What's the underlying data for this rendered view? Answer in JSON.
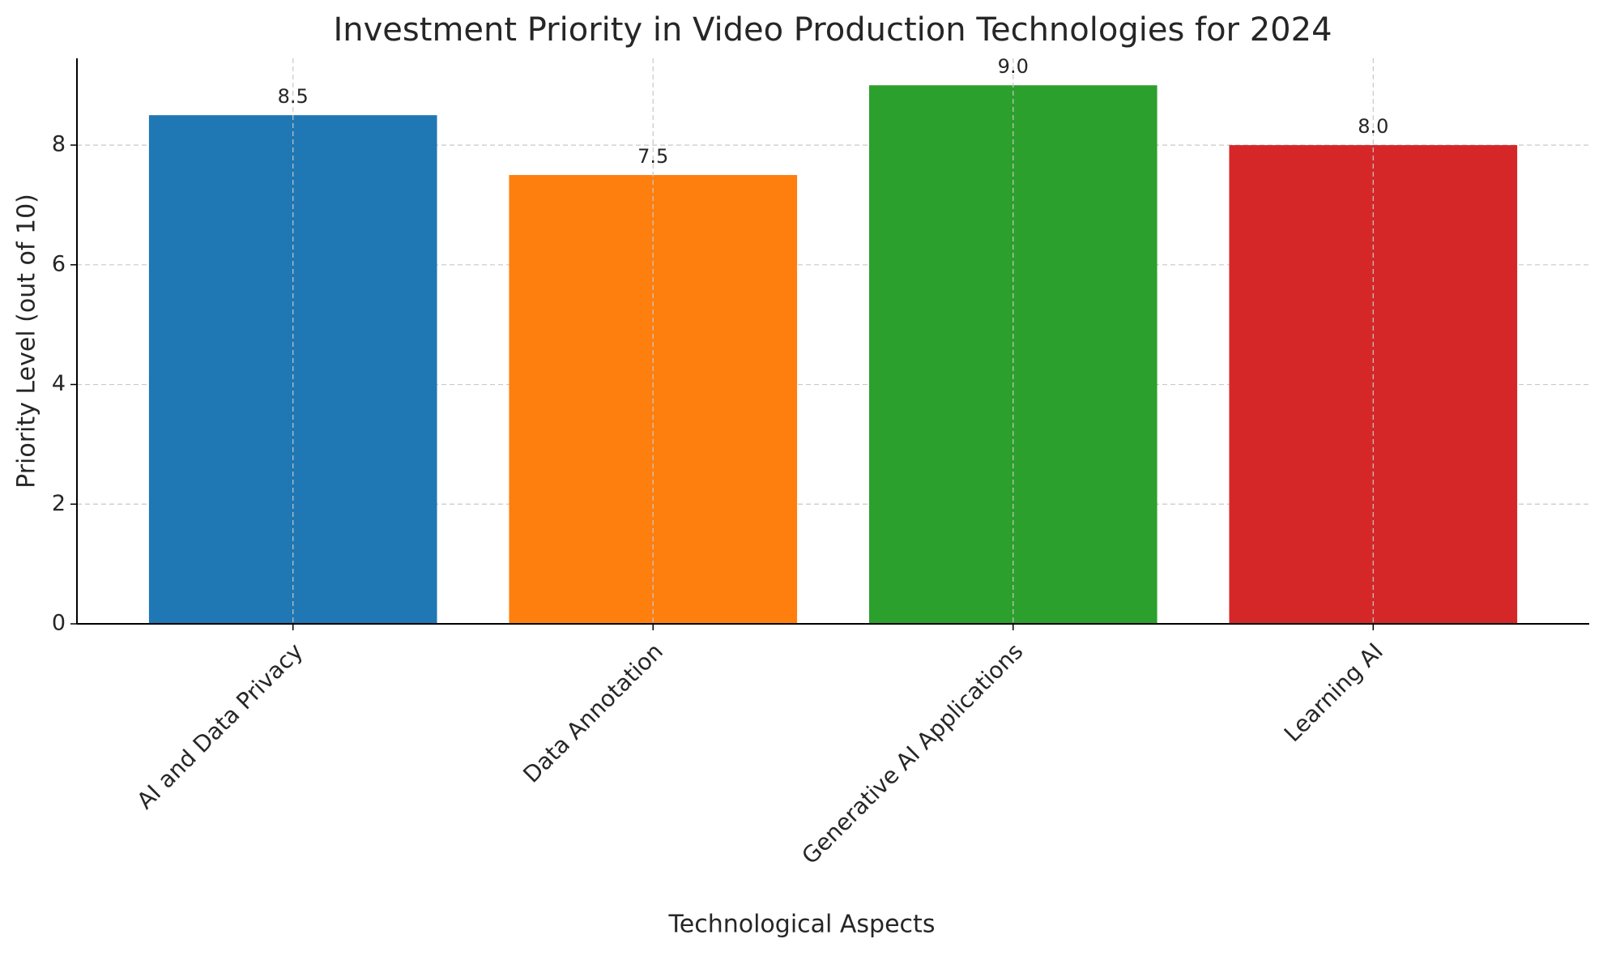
{
  "chart_data": {
    "type": "bar",
    "title": "Investment Priority in Video Production Technologies for 2024",
    "x_label": "Technological Aspects",
    "y_label": "Priority Level (out of 10)",
    "categories": [
      "AI and Data Privacy",
      "Data Annotation",
      "Generative AI Applications",
      "Learning AI"
    ],
    "values": [
      8.5,
      7.5,
      9,
      8
    ],
    "value_labels": [
      "8.5",
      "7.5",
      "9.0",
      "8.0"
    ],
    "colors": [
      "#1f77b4",
      "#ff7f0e",
      "#2ca02c",
      "#d62728"
    ],
    "ylim": [
      0,
      9.45
    ],
    "yticks": [
      0,
      2,
      4,
      6,
      8
    ],
    "grid": true
  }
}
